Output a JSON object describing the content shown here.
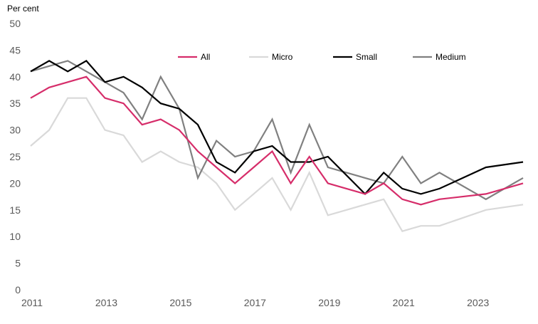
{
  "chart_data": {
    "type": "line",
    "title": "",
    "ylabel": "Per cent",
    "xlabel": "",
    "ylim": [
      0,
      50
    ],
    "xlim": [
      2011,
      2024.25
    ],
    "yticks": [
      0,
      5,
      10,
      15,
      20,
      25,
      30,
      35,
      40,
      45,
      50
    ],
    "xticks": [
      2011,
      2013,
      2015,
      2017,
      2019,
      2021,
      2023
    ],
    "grid": false,
    "legend_placement": "top",
    "x": [
      2011,
      2011.5,
      2012,
      2012.5,
      2013,
      2013.5,
      2014,
      2014.5,
      2015,
      2015.5,
      2016,
      2016.5,
      2017,
      2017.5,
      2018,
      2018.5,
      2019,
      2019.5,
      2020,
      2020.5,
      2021,
      2021.5,
      2022,
      2023.25,
      2024.25
    ],
    "series": [
      {
        "name": "All",
        "color": "#d62d6a",
        "values": [
          36,
          38,
          39,
          40,
          36,
          35,
          31,
          32,
          30,
          26,
          23,
          20,
          23,
          26,
          20,
          25,
          20,
          19,
          18,
          20,
          17,
          16,
          17,
          18,
          20
        ]
      },
      {
        "name": "Micro",
        "color": "#d9d9d9",
        "values": [
          27,
          30,
          36,
          36,
          30,
          29,
          24,
          26,
          24,
          23,
          20,
          15,
          18,
          21,
          15,
          22,
          14,
          15,
          16,
          17,
          11,
          12,
          12,
          15,
          16
        ]
      },
      {
        "name": "Small",
        "color": "#000000",
        "values": [
          41,
          43,
          41,
          43,
          39,
          40,
          38,
          35,
          34,
          31,
          24,
          22,
          26,
          27,
          24,
          24,
          25,
          21.5,
          18,
          22,
          19,
          18,
          19,
          23,
          24
        ]
      },
      {
        "name": "Medium",
        "color": "#808080",
        "values": [
          41,
          42,
          43,
          41,
          39,
          37,
          32,
          40,
          34,
          21,
          28,
          25,
          26,
          32,
          22,
          31,
          23,
          22,
          21,
          20,
          25,
          20,
          22,
          17,
          21
        ]
      }
    ]
  }
}
